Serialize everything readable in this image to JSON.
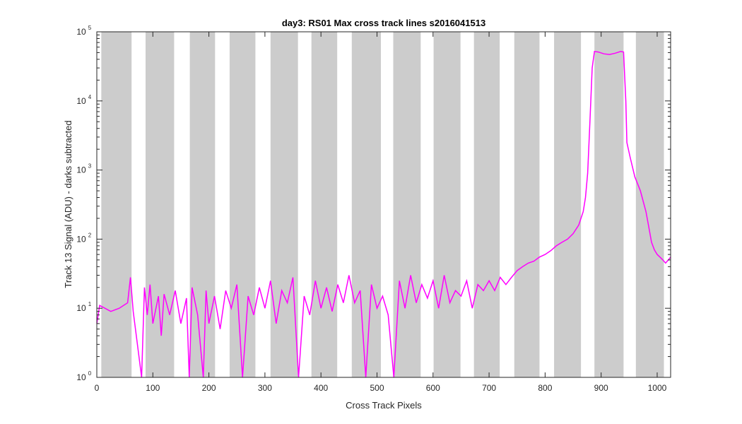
{
  "chart_data": {
    "type": "line",
    "title": "day3: RS01  Max cross track lines  s2016041513",
    "xlabel": "Cross Track Pixels",
    "ylabel": "Track 13 Signal (ADU) - darks subtracted",
    "xlim": [
      0,
      1024
    ],
    "ylim": [
      1,
      100000
    ],
    "yscale": "log",
    "x_ticks": [
      0,
      100,
      200,
      300,
      400,
      500,
      600,
      700,
      800,
      900,
      1000
    ],
    "x_tick_labels": [
      "0",
      "100",
      "200",
      "300",
      "400",
      "500",
      "600",
      "700",
      "800",
      "900",
      "1000"
    ],
    "y_ticks": [
      {
        "value": 1,
        "base": "10",
        "exp": "0"
      },
      {
        "value": 10,
        "base": "10",
        "exp": "1"
      },
      {
        "value": 100,
        "base": "10",
        "exp": "2"
      },
      {
        "value": 1000,
        "base": "10",
        "exp": "3"
      },
      {
        "value": 10000,
        "base": "10",
        "exp": "4"
      },
      {
        "value": 100000,
        "base": "10",
        "exp": "5"
      }
    ],
    "grid": false,
    "legend": "none",
    "shaded_bands_x": [
      [
        8,
        62
      ],
      [
        87,
        138
      ],
      [
        166,
        211
      ],
      [
        237,
        283
      ],
      [
        310,
        359
      ],
      [
        383,
        429
      ],
      [
        455,
        507
      ],
      [
        529,
        578
      ],
      [
        601,
        649
      ],
      [
        673,
        719
      ],
      [
        745,
        790
      ],
      [
        816,
        864
      ],
      [
        888,
        940
      ],
      [
        962,
        1012
      ]
    ],
    "series": [
      {
        "color": "#ff00ff",
        "points": [
          [
            0,
            6
          ],
          [
            5,
            11
          ],
          [
            25,
            9
          ],
          [
            40,
            10
          ],
          [
            55,
            12
          ],
          [
            60,
            28
          ],
          [
            65,
            9
          ],
          [
            80,
            1
          ],
          [
            85,
            20
          ],
          [
            90,
            8
          ],
          [
            95,
            22
          ],
          [
            100,
            6
          ],
          [
            110,
            15
          ],
          [
            115,
            4
          ],
          [
            120,
            16
          ],
          [
            130,
            8
          ],
          [
            140,
            18
          ],
          [
            150,
            6
          ],
          [
            160,
            14
          ],
          [
            165,
            1
          ],
          [
            170,
            20
          ],
          [
            180,
            8
          ],
          [
            190,
            1
          ],
          [
            195,
            18
          ],
          [
            200,
            6
          ],
          [
            210,
            15
          ],
          [
            220,
            5
          ],
          [
            230,
            18
          ],
          [
            240,
            10
          ],
          [
            250,
            22
          ],
          [
            260,
            1
          ],
          [
            270,
            15
          ],
          [
            280,
            8
          ],
          [
            290,
            20
          ],
          [
            300,
            10
          ],
          [
            310,
            25
          ],
          [
            320,
            6
          ],
          [
            330,
            18
          ],
          [
            340,
            12
          ],
          [
            350,
            28
          ],
          [
            360,
            1
          ],
          [
            370,
            15
          ],
          [
            380,
            8
          ],
          [
            390,
            25
          ],
          [
            400,
            10
          ],
          [
            410,
            20
          ],
          [
            420,
            9
          ],
          [
            430,
            22
          ],
          [
            440,
            12
          ],
          [
            450,
            30
          ],
          [
            460,
            12
          ],
          [
            470,
            18
          ],
          [
            480,
            1
          ],
          [
            490,
            22
          ],
          [
            500,
            10
          ],
          [
            510,
            15
          ],
          [
            520,
            8
          ],
          [
            530,
            1
          ],
          [
            540,
            25
          ],
          [
            550,
            10
          ],
          [
            560,
            30
          ],
          [
            570,
            12
          ],
          [
            580,
            22
          ],
          [
            590,
            14
          ],
          [
            600,
            25
          ],
          [
            610,
            10
          ],
          [
            620,
            30
          ],
          [
            630,
            12
          ],
          [
            640,
            18
          ],
          [
            650,
            15
          ],
          [
            660,
            25
          ],
          [
            670,
            10
          ],
          [
            680,
            22
          ],
          [
            690,
            18
          ],
          [
            700,
            25
          ],
          [
            710,
            18
          ],
          [
            720,
            28
          ],
          [
            730,
            22
          ],
          [
            740,
            28
          ],
          [
            750,
            35
          ],
          [
            760,
            40
          ],
          [
            770,
            45
          ],
          [
            780,
            48
          ],
          [
            790,
            55
          ],
          [
            800,
            60
          ],
          [
            810,
            68
          ],
          [
            820,
            80
          ],
          [
            830,
            90
          ],
          [
            840,
            100
          ],
          [
            850,
            120
          ],
          [
            860,
            160
          ],
          [
            868,
            250
          ],
          [
            872,
            400
          ],
          [
            876,
            900
          ],
          [
            880,
            5000
          ],
          [
            884,
            30000
          ],
          [
            888,
            52000
          ],
          [
            895,
            51000
          ],
          [
            905,
            48000
          ],
          [
            915,
            47000
          ],
          [
            925,
            49000
          ],
          [
            935,
            52000
          ],
          [
            940,
            51000
          ],
          [
            944,
            10000
          ],
          [
            946,
            2500
          ],
          [
            952,
            1500
          ],
          [
            960,
            800
          ],
          [
            970,
            500
          ],
          [
            980,
            250
          ],
          [
            985,
            150
          ],
          [
            990,
            90
          ],
          [
            995,
            70
          ],
          [
            1000,
            60
          ],
          [
            1005,
            55
          ],
          [
            1010,
            50
          ],
          [
            1015,
            45
          ],
          [
            1020,
            50
          ],
          [
            1024,
            55
          ]
        ]
      }
    ]
  },
  "colors": {
    "series": "#ff00ff",
    "band": "#cccccc",
    "axis": "#262626"
  }
}
